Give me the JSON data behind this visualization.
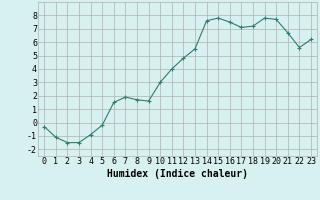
{
  "x": [
    0,
    1,
    2,
    3,
    4,
    5,
    6,
    7,
    8,
    9,
    10,
    11,
    12,
    13,
    14,
    15,
    16,
    17,
    18,
    19,
    20,
    21,
    22,
    23
  ],
  "y": [
    -0.3,
    -1.1,
    -1.5,
    -1.5,
    -0.9,
    -0.2,
    1.5,
    1.9,
    1.7,
    1.6,
    3.0,
    4.0,
    4.8,
    5.5,
    7.6,
    7.8,
    7.5,
    7.1,
    7.2,
    7.8,
    7.7,
    6.7,
    5.6,
    6.2
  ],
  "xlabel": "Humidex (Indice chaleur)",
  "ylim": [
    -2.5,
    9.0
  ],
  "xlim": [
    -0.5,
    23.5
  ],
  "yticks": [
    -2,
    -1,
    0,
    1,
    2,
    3,
    4,
    5,
    6,
    7,
    8
  ],
  "xticks": [
    0,
    1,
    2,
    3,
    4,
    5,
    6,
    7,
    8,
    9,
    10,
    11,
    12,
    13,
    14,
    15,
    16,
    17,
    18,
    19,
    20,
    21,
    22,
    23
  ],
  "line_color": "#2e7d6e",
  "marker": "+",
  "bg_color": "#d7f0f0",
  "grid_color": "#b0b0b0",
  "xlabel_fontsize": 7,
  "tick_fontsize": 6,
  "fig_width": 3.2,
  "fig_height": 2.0,
  "dpi": 100
}
